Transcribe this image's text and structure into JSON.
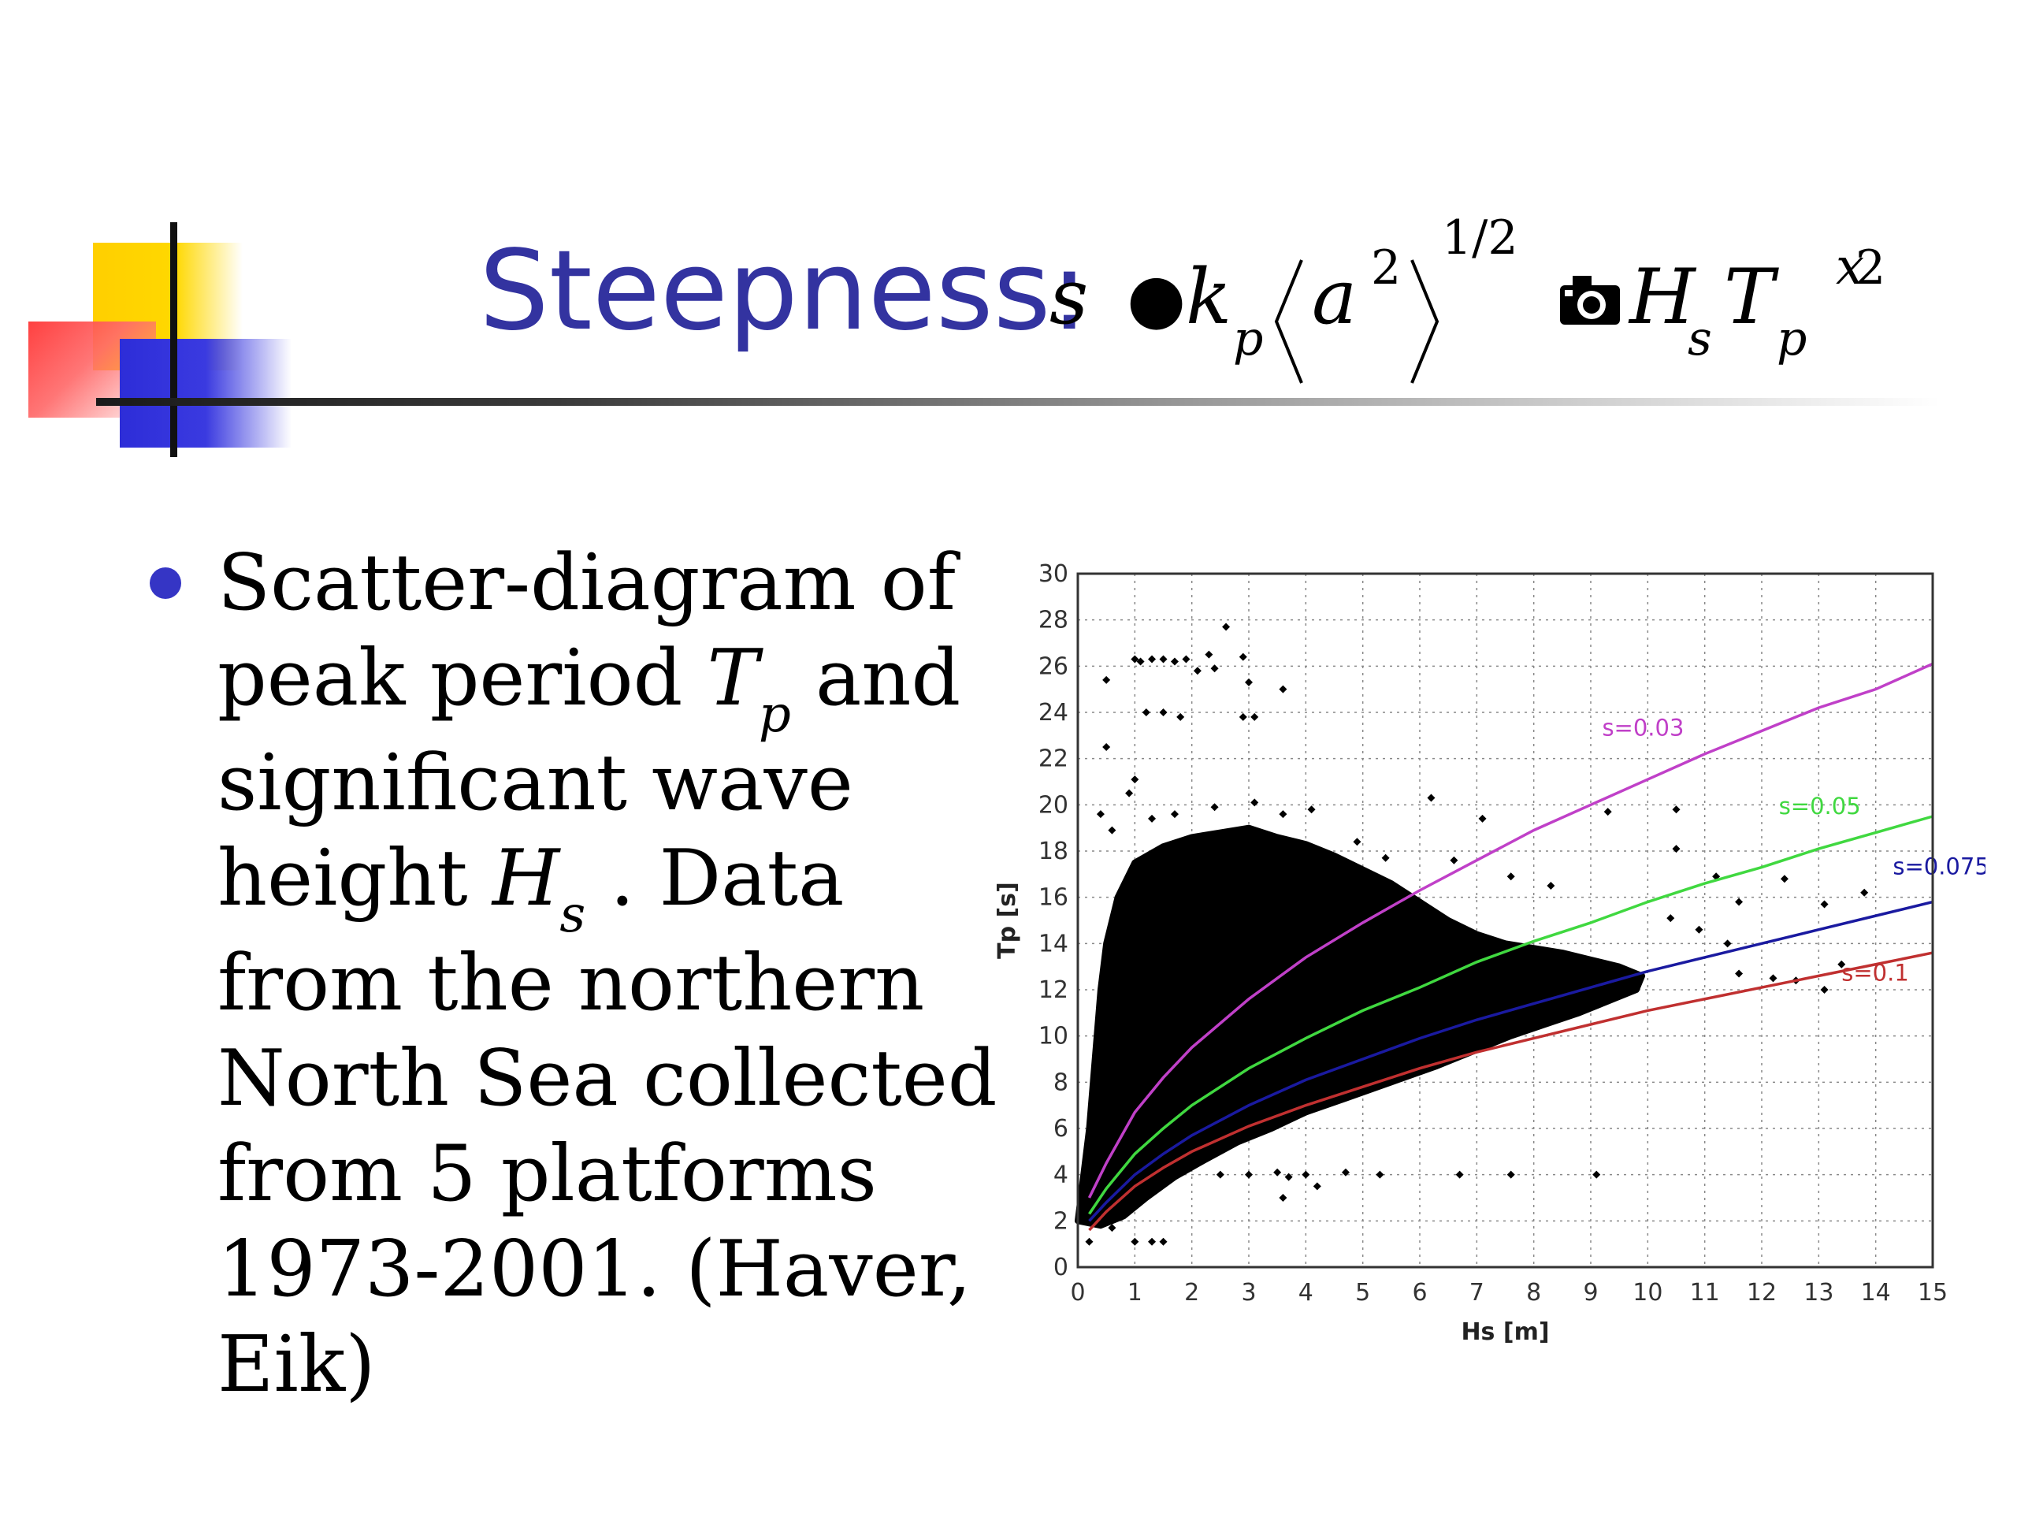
{
  "title": {
    "word": "Steepness:",
    "formula": {
      "s": "s",
      "k": "k",
      "k_sub": "p",
      "a": "a",
      "a_sup": "2",
      "exponent": "1/2",
      "H": "H",
      "H_sub": "s",
      "T": "T",
      "T_sub": "p",
      "T_sup": "2",
      "proportional_symbol": "●",
      "approx_symbol": "📷",
      "sup_glyph": "x"
    }
  },
  "bullet": {
    "lines": [
      {
        "pre": "Scatter-diagram of",
        "sym": "",
        "sub": "",
        "post": ""
      },
      {
        "pre": "peak period ",
        "sym": "T",
        "sub": "p",
        "post": " and"
      },
      {
        "pre": "significant wave",
        "sym": "",
        "sub": "",
        "post": ""
      },
      {
        "pre": "height ",
        "sym": "H",
        "sub": "s",
        "post": " . Data"
      },
      {
        "pre": "from the northern",
        "sym": "",
        "sub": "",
        "post": ""
      },
      {
        "pre": "North Sea  collected",
        "sym": "",
        "sub": "",
        "post": ""
      },
      {
        "pre": "from 5 platforms",
        "sym": "",
        "sub": "",
        "post": ""
      },
      {
        "pre": "1973-2001.   (Haver,",
        "sym": "",
        "sub": "",
        "post": ""
      },
      {
        "pre": "Eik)",
        "sym": "",
        "sub": "",
        "post": ""
      }
    ]
  },
  "colors": {
    "title": "#3333a0",
    "bullet": "#3535c5",
    "points": "#000000"
  },
  "chart_data": {
    "type": "scatter",
    "title": "",
    "xlabel": "Hs [m]",
    "ylabel": "Tp [s]",
    "xlim": [
      0,
      15
    ],
    "ylim": [
      0,
      30
    ],
    "xticks": [
      0,
      1,
      2,
      3,
      4,
      5,
      6,
      7,
      8,
      9,
      10,
      11,
      12,
      13,
      14,
      15
    ],
    "yticks": [
      0,
      2,
      4,
      6,
      8,
      10,
      12,
      14,
      16,
      18,
      20,
      22,
      24,
      26,
      28,
      30
    ],
    "grid": true,
    "scatter": {
      "name": "",
      "color": "#000000",
      "marker": "diamond",
      "points": [
        [
          1.0,
          26.3
        ],
        [
          1.1,
          26.2
        ],
        [
          1.3,
          26.3
        ],
        [
          1.5,
          26.3
        ],
        [
          1.7,
          26.2
        ],
        [
          1.9,
          26.3
        ],
        [
          2.1,
          25.8
        ],
        [
          2.3,
          26.5
        ],
        [
          2.4,
          25.9
        ],
        [
          2.6,
          27.7
        ],
        [
          2.9,
          26.4
        ],
        [
          3.0,
          25.3
        ],
        [
          3.6,
          25.0
        ],
        [
          0.5,
          25.4
        ],
        [
          1.2,
          24.0
        ],
        [
          1.5,
          24.0
        ],
        [
          1.8,
          23.8
        ],
        [
          2.9,
          23.8
        ],
        [
          3.1,
          23.8
        ],
        [
          0.5,
          22.5
        ],
        [
          1.0,
          21.1
        ],
        [
          0.9,
          20.5
        ],
        [
          0.4,
          19.6
        ],
        [
          0.6,
          18.9
        ],
        [
          1.3,
          19.4
        ],
        [
          1.7,
          19.6
        ],
        [
          2.4,
          19.9
        ],
        [
          3.1,
          20.1
        ],
        [
          3.6,
          19.6
        ],
        [
          4.1,
          19.8
        ],
        [
          6.2,
          20.3
        ],
        [
          7.1,
          19.4
        ],
        [
          9.3,
          19.7
        ],
        [
          10.5,
          19.8
        ],
        [
          4.9,
          18.4
        ],
        [
          5.4,
          17.7
        ],
        [
          6.6,
          17.6
        ],
        [
          7.6,
          16.9
        ],
        [
          8.3,
          16.5
        ],
        [
          10.5,
          18.1
        ],
        [
          11.2,
          16.9
        ],
        [
          11.6,
          15.8
        ],
        [
          12.4,
          16.8
        ],
        [
          13.1,
          15.7
        ],
        [
          13.8,
          16.2
        ],
        [
          10.4,
          15.1
        ],
        [
          10.9,
          14.6
        ],
        [
          11.4,
          14.0
        ],
        [
          11.6,
          12.7
        ],
        [
          12.2,
          12.5
        ],
        [
          12.6,
          12.4
        ],
        [
          13.1,
          12.0
        ],
        [
          13.4,
          13.1
        ],
        [
          0.9,
          2.5
        ],
        [
          1.0,
          1.1
        ],
        [
          1.3,
          1.1
        ],
        [
          1.5,
          1.1
        ],
        [
          0.2,
          1.1
        ],
        [
          0.6,
          1.7
        ],
        [
          2.5,
          4.0
        ],
        [
          3.0,
          4.0
        ],
        [
          3.5,
          4.1
        ],
        [
          4.0,
          4.0
        ],
        [
          4.2,
          3.5
        ],
        [
          4.7,
          4.1
        ],
        [
          5.3,
          4.0
        ],
        [
          6.7,
          4.0
        ],
        [
          7.6,
          4.0
        ],
        [
          9.1,
          4.0
        ],
        [
          3.6,
          3.0
        ],
        [
          3.7,
          3.9
        ]
      ],
      "dense_cloud_hs_range": [
        0,
        8
      ],
      "dense_cloud_tp_range": [
        2,
        19
      ]
    },
    "series": [
      {
        "name": "s=0.03",
        "color": "#c040c8",
        "x": [
          0.2,
          0.5,
          1,
          1.5,
          2,
          3,
          4,
          5,
          6,
          7,
          8,
          9,
          10,
          11,
          12,
          13,
          14,
          15
        ],
        "y": [
          3.0,
          4.5,
          6.7,
          8.2,
          9.5,
          11.6,
          13.4,
          14.9,
          16.3,
          17.6,
          18.9,
          20.0,
          21.1,
          22.2,
          23.2,
          24.2,
          25.0,
          26.1
        ]
      },
      {
        "name": "s=0.05",
        "color": "#40d840",
        "x": [
          0.2,
          0.5,
          1,
          1.5,
          2,
          3,
          4,
          5,
          6,
          7,
          8,
          9,
          10,
          11,
          12,
          13,
          14,
          15
        ],
        "y": [
          2.3,
          3.4,
          4.9,
          6.0,
          7.0,
          8.6,
          9.9,
          11.1,
          12.1,
          13.2,
          14.1,
          14.9,
          15.8,
          16.6,
          17.3,
          18.1,
          18.8,
          19.5
        ]
      },
      {
        "name": "s=0.075",
        "color": "#1a1aa0",
        "x": [
          0.2,
          0.5,
          1,
          1.5,
          2,
          3,
          4,
          5,
          6,
          7,
          8,
          9,
          10,
          11,
          12,
          13,
          14,
          15
        ],
        "y": [
          2.0,
          2.8,
          4.0,
          4.9,
          5.7,
          7.0,
          8.1,
          9.0,
          9.9,
          10.7,
          11.4,
          12.1,
          12.8,
          13.4,
          14.0,
          14.6,
          15.2,
          15.8
        ]
      },
      {
        "name": "s=0.1",
        "color": "#c03030",
        "x": [
          0.2,
          0.5,
          1,
          1.5,
          2,
          3,
          4,
          5,
          6,
          7,
          8,
          9,
          10,
          11,
          12,
          13,
          14,
          15
        ],
        "y": [
          1.6,
          2.4,
          3.5,
          4.3,
          5.0,
          6.1,
          7.0,
          7.8,
          8.6,
          9.3,
          9.9,
          10.5,
          11.1,
          11.6,
          12.1,
          12.6,
          13.1,
          13.6
        ]
      }
    ],
    "annotations": [
      {
        "text": "s=0.03",
        "x": 9.2,
        "y": 23.0,
        "color": "#c040c8"
      },
      {
        "text": "s=0.05",
        "x": 12.3,
        "y": 19.6,
        "color": "#40d840"
      },
      {
        "text": "s=0.075",
        "x": 14.3,
        "y": 17.0,
        "color": "#1a1aa0"
      },
      {
        "text": "s=0.1",
        "x": 13.4,
        "y": 12.4,
        "color": "#c03030"
      }
    ]
  }
}
